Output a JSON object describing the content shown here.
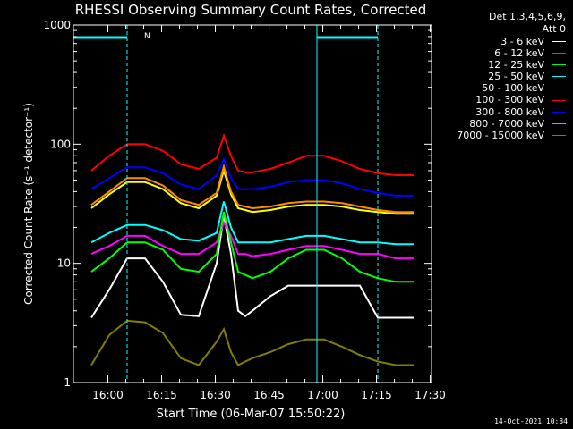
{
  "chart_data": {
    "type": "line",
    "title": "RHESSI Observing Summary Count Rates, Corrected",
    "ylabel": "Corrected Count Rate (s⁻¹ detector⁻¹)",
    "xlabel": "Start Time (06-Mar-07 15:50:22)",
    "yscale": "log",
    "ylim": [
      1,
      1000
    ],
    "ytick_labels": [
      "1",
      "10",
      "100",
      "1000"
    ],
    "xlim_minutes": [
      0,
      100
    ],
    "xtick_labels": [
      "16:00",
      "16:15",
      "16:30",
      "16:45",
      "17:00",
      "17:15",
      "17:30"
    ],
    "x_minutes": [
      0,
      5,
      10,
      15,
      20,
      25,
      30,
      35,
      40,
      42,
      44,
      46,
      48,
      50,
      55,
      60,
      65,
      70,
      75,
      80,
      85,
      90,
      95,
      100
    ],
    "series": [
      {
        "name": "3 - 6 keV",
        "color": "#ffffff",
        "values": [
          null,
          3.5,
          6,
          11,
          11,
          7,
          3.7,
          3.6,
          10,
          25,
          12,
          4,
          3.6,
          4,
          5.3,
          6.5,
          6.5,
          6.5,
          6.5,
          6.5,
          3.5,
          3.5,
          3.5,
          null
        ]
      },
      {
        "name": "6 - 12 keV",
        "color": "#ff00ff",
        "values": [
          null,
          12,
          14,
          17,
          17,
          14,
          12,
          12,
          15,
          22,
          17,
          12,
          12,
          11.5,
          12,
          13,
          14,
          14,
          13,
          12,
          12,
          11,
          11,
          null
        ]
      },
      {
        "name": "12 - 25 keV",
        "color": "#00ff00",
        "values": [
          null,
          8.5,
          11,
          15,
          15,
          13,
          9,
          8.5,
          12,
          27,
          15,
          8.5,
          8,
          7.5,
          8.5,
          11,
          13,
          13,
          11,
          8.5,
          7.5,
          7,
          7,
          null
        ]
      },
      {
        "name": "25 - 50 keV",
        "color": "#00ffff",
        "values": [
          null,
          15,
          18,
          21,
          21,
          19,
          16,
          15.5,
          18,
          33,
          20,
          15,
          15,
          15,
          15,
          16,
          17,
          17,
          16,
          15,
          15,
          14.5,
          14.5,
          null
        ]
      },
      {
        "name": "50 - 100 keV",
        "color": "#ffff00",
        "values": [
          null,
          29,
          38,
          48,
          48,
          42,
          32,
          29,
          37,
          60,
          38,
          29,
          28,
          27,
          28,
          30,
          31,
          31,
          30,
          28,
          27,
          26,
          26,
          null
        ]
      },
      {
        "name": "100 - 300 keV",
        "color": "#ff0000",
        "values": [
          null,
          60,
          80,
          100,
          100,
          88,
          68,
          62,
          77,
          118,
          80,
          60,
          58,
          58,
          62,
          70,
          80,
          80,
          72,
          62,
          57,
          55,
          55,
          null
        ]
      },
      {
        "name": "300 - 800 keV",
        "color": "#0000ff",
        "values": [
          null,
          42,
          52,
          64,
          64,
          57,
          46,
          42,
          55,
          75,
          52,
          42,
          42,
          42,
          44,
          48,
          50,
          50,
          47,
          42,
          39,
          37,
          37,
          null
        ]
      },
      {
        "name": "800 - 7000 keV",
        "color": "#ff8c00",
        "values": [
          null,
          31,
          40,
          52,
          52,
          45,
          34,
          31,
          39,
          65,
          40,
          31,
          30,
          29,
          30,
          32,
          33,
          33,
          32,
          30,
          28,
          27,
          27,
          null
        ]
      },
      {
        "name": "7000 - 15000 keV",
        "color": "#808000",
        "values": [
          null,
          1.4,
          2.5,
          3.3,
          3.2,
          2.6,
          1.6,
          1.4,
          2.2,
          2.8,
          1.8,
          1.4,
          1.5,
          1.6,
          1.8,
          2.1,
          2.3,
          2.3,
          2.0,
          1.7,
          1.5,
          1.4,
          1.4,
          null
        ]
      }
    ],
    "attenuator_bar_minutes": [
      [
        0,
        15
      ],
      [
        68,
        85
      ]
    ],
    "attenuator_marker": "N",
    "vertical_dashed_lines_minutes": [
      15,
      85
    ],
    "vertical_solid_lines_minutes": [
      0,
      68
    ],
    "legend_placement": "top-right",
    "grid": false
  },
  "legend": {
    "header_line1": "Det 1,3,4,5,6,9,",
    "header_line2": "Att 0"
  },
  "timestamp": "14-Oct-2021 10:34"
}
